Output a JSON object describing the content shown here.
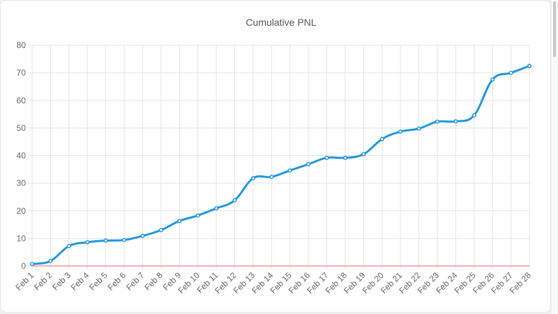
{
  "chart_data": {
    "type": "line",
    "title": "Cumulative PNL",
    "xlabel": "",
    "ylabel": "",
    "ylim": [
      0,
      80
    ],
    "yticks": [
      0,
      10,
      20,
      30,
      40,
      50,
      60,
      70,
      80
    ],
    "grid": true,
    "categories": [
      "Feb 1",
      "Feb 2",
      "Feb 3",
      "Feb 4",
      "Feb 5",
      "Feb 6",
      "Feb 7",
      "Feb 8",
      "Feb 9",
      "Feb 10",
      "Feb 11",
      "Feb 12",
      "Feb 13",
      "Feb 14",
      "Feb 15",
      "Feb 16",
      "Feb 17",
      "Feb 18",
      "Feb 19",
      "Feb 20",
      "Feb 21",
      "Feb 22",
      "Feb 23",
      "Feb 24",
      "Feb 25",
      "Feb 26",
      "Feb 27",
      "Feb 28"
    ],
    "series": [
      {
        "name": "Cumulative PNL",
        "color": "#2196e0",
        "values": [
          0.7,
          1.8,
          7.2,
          8.6,
          9.2,
          9.4,
          10.9,
          13.0,
          16.3,
          18.3,
          20.9,
          23.8,
          31.8,
          32.3,
          34.6,
          36.9,
          39.2,
          39.2,
          40.5,
          46.0,
          48.7,
          49.8,
          52.3,
          52.4,
          54.6,
          67.6,
          70.0,
          72.5
        ]
      }
    ],
    "zero_line_color": "#f08080"
  }
}
